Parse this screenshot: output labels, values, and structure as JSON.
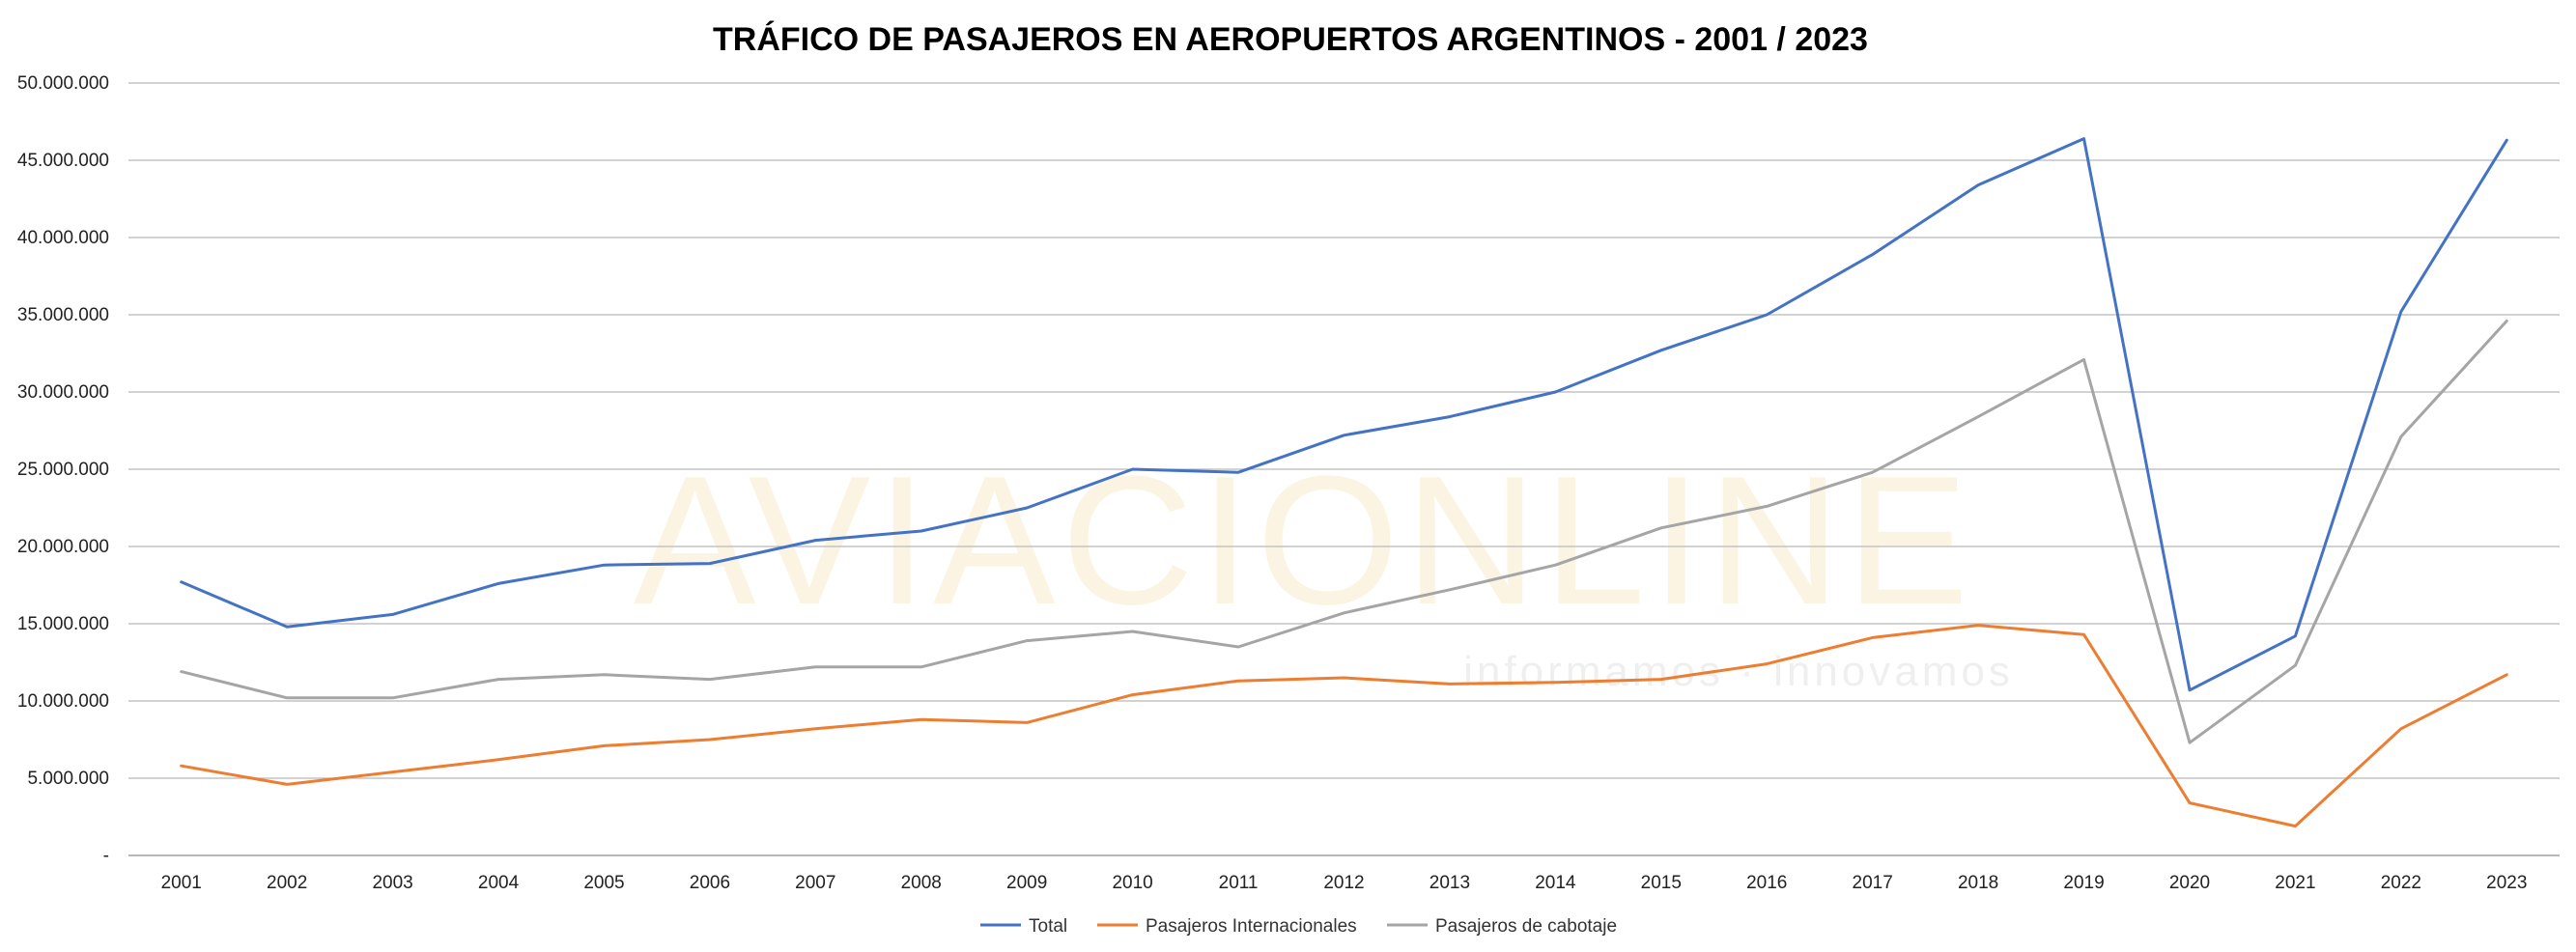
{
  "chart_data": {
    "type": "line",
    "title": "TRÁFICO DE PASAJEROS EN AEROPUERTOS ARGENTINOS - 2001 / 2023",
    "xlabel": "",
    "ylabel": "",
    "categories": [
      "2001",
      "2002",
      "2003",
      "2004",
      "2005",
      "2006",
      "2007",
      "2008",
      "2009",
      "2010",
      "2011",
      "2012",
      "2013",
      "2014",
      "2015",
      "2016",
      "2017",
      "2018",
      "2019",
      "2020",
      "2021",
      "2022",
      "2023"
    ],
    "ylim": [
      0,
      50000000
    ],
    "y_ticks": [
      {
        "value": 0,
        "label": "-"
      },
      {
        "value": 5000000,
        "label": "5.000.000"
      },
      {
        "value": 10000000,
        "label": "10.000.000"
      },
      {
        "value": 15000000,
        "label": "15.000.000"
      },
      {
        "value": 20000000,
        "label": "20.000.000"
      },
      {
        "value": 25000000,
        "label": "25.000.000"
      },
      {
        "value": 30000000,
        "label": "30.000.000"
      },
      {
        "value": 35000000,
        "label": "35.000.000"
      },
      {
        "value": 40000000,
        "label": "40.000.000"
      },
      {
        "value": 45000000,
        "label": "45.000.000"
      },
      {
        "value": 50000000,
        "label": "50.000.000"
      }
    ],
    "grid": true,
    "legend_position": "bottom",
    "series": [
      {
        "name": "Total",
        "color": "#4472c4",
        "values": [
          17700000,
          14800000,
          15600000,
          17600000,
          18800000,
          18900000,
          20400000,
          21000000,
          22500000,
          25000000,
          24800000,
          27200000,
          28400000,
          30000000,
          32700000,
          35000000,
          38900000,
          43400000,
          46400000,
          10700000,
          14200000,
          35200000,
          46300000
        ]
      },
      {
        "name": "Pasajeros Internacionales",
        "color": "#ed7d31",
        "values": [
          5800000,
          4600000,
          5400000,
          6200000,
          7100000,
          7500000,
          8200000,
          8800000,
          8600000,
          10400000,
          11300000,
          11500000,
          11100000,
          11200000,
          11400000,
          12400000,
          14100000,
          14900000,
          14300000,
          3400000,
          1900000,
          8200000,
          11700000
        ]
      },
      {
        "name": "Pasajeros de cabotaje",
        "color": "#a5a5a5",
        "values": [
          11900000,
          10200000,
          10200000,
          11400000,
          11700000,
          11400000,
          12200000,
          12200000,
          13900000,
          14500000,
          13500000,
          15700000,
          17200000,
          18800000,
          21200000,
          22600000,
          24800000,
          28400000,
          32100000,
          7300000,
          12300000,
          27100000,
          34600000
        ]
      }
    ]
  },
  "watermark": {
    "brand": "AVIACIONLINE",
    "tagline": "informamos · innovamos"
  }
}
